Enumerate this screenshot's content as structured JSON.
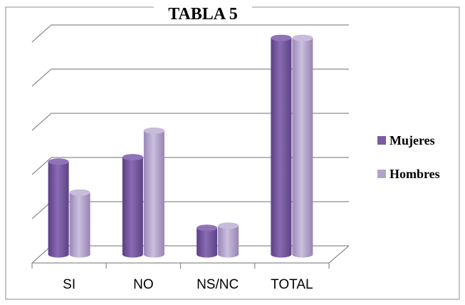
{
  "chart_data": {
    "type": "bar",
    "title": "TABLA 5",
    "xlabel": "",
    "ylabel": "",
    "categories": [
      "SI",
      "NO",
      "NS/NC",
      "TOTAL"
    ],
    "series": [
      {
        "name": "Mujeres",
        "values": [
          2.1,
          2.2,
          0.6,
          4.9
        ]
      },
      {
        "name": "Hombres",
        "values": [
          1.4,
          2.8,
          0.65,
          4.9
        ]
      }
    ],
    "ylim": [
      0,
      5
    ],
    "grid": true,
    "legend": "right",
    "colors": {
      "Mujeres": "#7a5aa2",
      "Hombres": "#b4a2cd",
      "grid": "#8c8c8c",
      "frame": "#8c8c8c"
    }
  }
}
